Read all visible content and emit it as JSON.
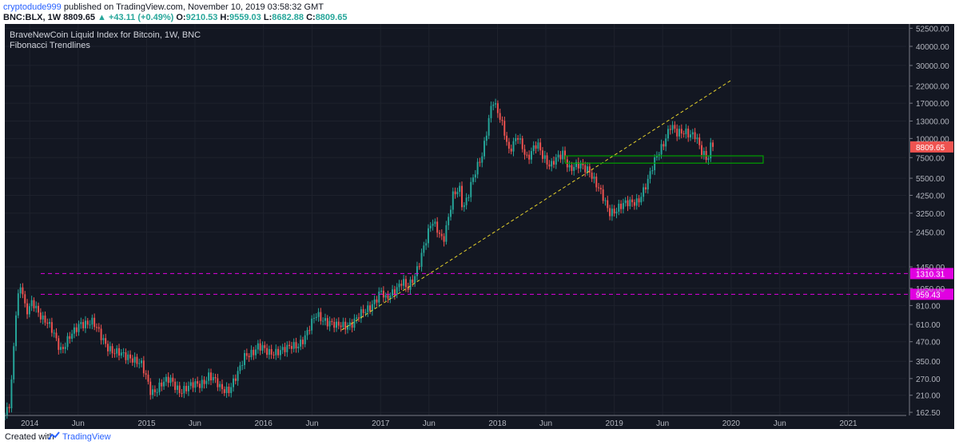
{
  "header": {
    "publisher": "cryptodude999",
    "published_text": "published on TradingView.com, November 10, 2019 03:58:32 GMT",
    "symbol": "BNC:BLX, 1W",
    "last": "8809.65",
    "change": "+43.11 (+0.49%)",
    "ohlc_open_label": "O:",
    "ohlc_open": "9210.53",
    "ohlc_high_label": "H:",
    "ohlc_high": "9559.03",
    "ohlc_low_label": "L:",
    "ohlc_low": "8682.88",
    "ohlc_close_label": "C:",
    "ohlc_close": "8809.65"
  },
  "chart_data": {
    "type": "candlestick",
    "title": "BraveNewCoin Liquid Index for Bitcoin, 1W, BNC",
    "subtitle": "Fibonacci Trendlines",
    "y_scale": "log",
    "ylim": [
      155,
      56000
    ],
    "x_range": [
      "2013-10-15",
      "2021-07-01"
    ],
    "y_ticks": [
      "52500.00",
      "40000.00",
      "30000.00",
      "22000.00",
      "17000.00",
      "13000.00",
      "10000.00",
      "7500.00",
      "5500.00",
      "4250.00",
      "3250.00",
      "2450.00",
      "1450.00",
      "1050.00",
      "810.00",
      "610.00",
      "470.00",
      "350.00",
      "270.00",
      "210.00",
      "162.50"
    ],
    "x_ticks": [
      {
        "label": "2014",
        "date": "2014-01-01"
      },
      {
        "label": "Jun",
        "date": "2014-06-01"
      },
      {
        "label": "2015",
        "date": "2015-01-01"
      },
      {
        "label": "Jun",
        "date": "2015-06-01"
      },
      {
        "label": "2016",
        "date": "2016-01-01"
      },
      {
        "label": "Jun",
        "date": "2016-06-01"
      },
      {
        "label": "2017",
        "date": "2017-01-01"
      },
      {
        "label": "Jun",
        "date": "2017-06-01"
      },
      {
        "label": "2018",
        "date": "2018-01-01"
      },
      {
        "label": "Jun",
        "date": "2018-06-01"
      },
      {
        "label": "2019",
        "date": "2019-01-01"
      },
      {
        "label": "Jun",
        "date": "2019-06-01"
      },
      {
        "label": "2020",
        "date": "2020-01-01"
      },
      {
        "label": "Jun",
        "date": "2020-06-01"
      },
      {
        "label": "2021",
        "date": "2021-01-01"
      }
    ],
    "price_path": [
      [
        "2013-10-15",
        155
      ],
      [
        "2013-11-01",
        200
      ],
      [
        "2013-11-20",
        800
      ],
      [
        "2013-12-05",
        1100
      ],
      [
        "2013-12-20",
        700
      ],
      [
        "2014-01-10",
        900
      ],
      [
        "2014-02-10",
        650
      ],
      [
        "2014-03-15",
        550
      ],
      [
        "2014-04-10",
        420
      ],
      [
        "2014-05-15",
        520
      ],
      [
        "2014-06-10",
        640
      ],
      [
        "2014-07-15",
        620
      ],
      [
        "2014-08-15",
        500
      ],
      [
        "2014-09-20",
        400
      ],
      [
        "2014-10-15",
        380
      ],
      [
        "2014-11-15",
        380
      ],
      [
        "2014-12-15",
        330
      ],
      [
        "2015-01-15",
        220
      ],
      [
        "2015-02-15",
        250
      ],
      [
        "2015-03-15",
        260
      ],
      [
        "2015-04-15",
        230
      ],
      [
        "2015-05-15",
        235
      ],
      [
        "2015-06-15",
        250
      ],
      [
        "2015-07-15",
        285
      ],
      [
        "2015-08-20",
        230
      ],
      [
        "2015-09-15",
        235
      ],
      [
        "2015-10-15",
        290
      ],
      [
        "2015-11-05",
        380
      ],
      [
        "2015-12-15",
        440
      ],
      [
        "2016-01-15",
        390
      ],
      [
        "2016-02-15",
        420
      ],
      [
        "2016-03-15",
        415
      ],
      [
        "2016-04-15",
        450
      ],
      [
        "2016-05-15",
        530
      ],
      [
        "2016-06-15",
        700
      ],
      [
        "2016-07-15",
        660
      ],
      [
        "2016-08-15",
        580
      ],
      [
        "2016-09-15",
        610
      ],
      [
        "2016-10-15",
        650
      ],
      [
        "2016-11-15",
        740
      ],
      [
        "2016-12-15",
        900
      ],
      [
        "2017-01-05",
        1000
      ],
      [
        "2017-01-15",
        850
      ],
      [
        "2017-02-15",
        1050
      ],
      [
        "2017-03-10",
        1200
      ],
      [
        "2017-03-25",
        1000
      ],
      [
        "2017-04-15",
        1200
      ],
      [
        "2017-05-15",
        2000
      ],
      [
        "2017-06-10",
        2800
      ],
      [
        "2017-07-15",
        2200
      ],
      [
        "2017-08-15",
        4200
      ],
      [
        "2017-09-05",
        4500
      ],
      [
        "2017-09-15",
        3400
      ],
      [
        "2017-10-15",
        5600
      ],
      [
        "2017-11-15",
        7500
      ],
      [
        "2017-12-17",
        19000
      ],
      [
        "2018-01-10",
        13500
      ],
      [
        "2018-02-06",
        8000
      ],
      [
        "2018-03-05",
        11000
      ],
      [
        "2018-04-05",
        7000
      ],
      [
        "2018-05-05",
        9500
      ],
      [
        "2018-06-15",
        6400
      ],
      [
        "2018-07-25",
        8200
      ],
      [
        "2018-08-15",
        6400
      ],
      [
        "2018-09-15",
        6500
      ],
      [
        "2018-10-15",
        6400
      ],
      [
        "2018-11-20",
        4300
      ],
      [
        "2018-12-15",
        3300
      ],
      [
        "2019-01-15",
        3600
      ],
      [
        "2019-02-15",
        3700
      ],
      [
        "2019-03-15",
        4000
      ],
      [
        "2019-04-15",
        5100
      ],
      [
        "2019-05-15",
        7900
      ],
      [
        "2019-06-26",
        12000
      ],
      [
        "2019-07-15",
        10500
      ],
      [
        "2019-08-10",
        11500
      ],
      [
        "2019-09-10",
        10300
      ],
      [
        "2019-09-30",
        8000
      ],
      [
        "2019-10-20",
        7400
      ],
      [
        "2019-10-28",
        9300
      ],
      [
        "2019-11-10",
        8809.65
      ]
    ],
    "horizontal_lines": [
      {
        "label": "1310.31",
        "value": 1310.31,
        "color": "#e100e1"
      },
      {
        "label": "959.43",
        "value": 959.43,
        "color": "#e100e1"
      }
    ],
    "trendline": {
      "from": [
        "2016-09-01",
        560
      ],
      "to": [
        "2020-01-01",
        24000
      ],
      "color": "#e6d22c"
    },
    "support_zone": {
      "from": "2018-08-01",
      "to": "2020-04-10",
      "low": 6900,
      "high": 7700,
      "color": "#00a000"
    },
    "last_price_label": "8809.65",
    "colors": {
      "background": "#131722",
      "up": "#26a69a",
      "down": "#ef5350",
      "grid": "#1e222d",
      "axis_text": "#b2b5be"
    }
  },
  "footer": {
    "created": "Created with",
    "brand": "TradingView"
  }
}
